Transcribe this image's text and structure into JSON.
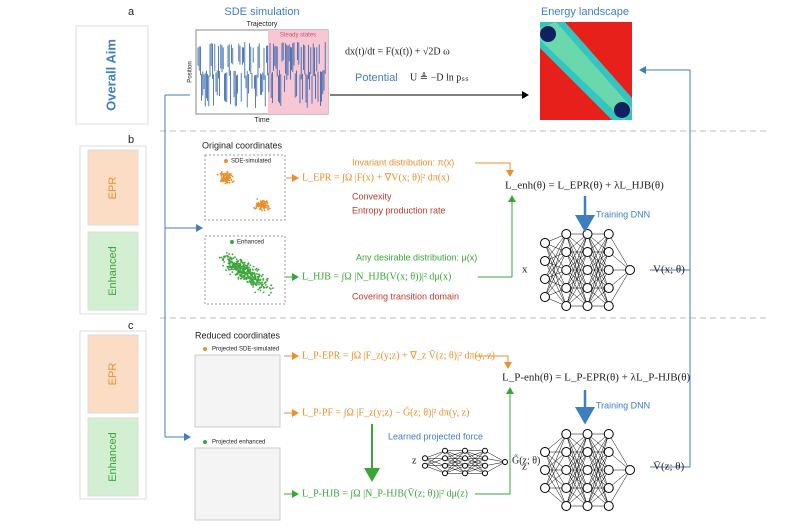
{
  "panel_a": {
    "label": "a",
    "side": "Overall Aim",
    "sde_title": "SDE simulation",
    "trajectory": "Trajectory",
    "steady": "Steady states",
    "position": "Position",
    "time": "Time",
    "equation": "dx(t)/dt = F(x(t)) + √2D ω",
    "potential_label": "Potential",
    "potential": "U ≜ −D ln pₛₛ",
    "landscape": "Energy landscape"
  },
  "panel_b": {
    "label": "b",
    "side_top": "EPR",
    "side_bottom": "Enhanced",
    "coords": "Original coordinates",
    "legend_top": "SDE-simulated",
    "legend_bottom": "Enhanced",
    "loss_epr": "L_EPR = ∫Ω |F(x) + ∇V(x; θ)|² dπ(x)",
    "invariant": "Invariant distribution: π(x)",
    "convexity": "Convexity",
    "epr_rate": "Entropy production rate",
    "any": "Any desirable distribution: μ(x)",
    "loss_hjb": "L_HJB = ∫Ω |N_HJB(V(x; θ))|² dμ(x)",
    "covering": "Covering transition domain",
    "total": "L_enh(θ) = L_EPR(θ) + λL_HJB(θ)",
    "training": "Training DNN",
    "input": "x",
    "output": "V(x; θ)"
  },
  "panel_c": {
    "label": "c",
    "side_top": "EPR",
    "side_bottom": "Enhanced",
    "coords": "Reduced coordinates",
    "legend_top": "Projected SDE-simulated",
    "legend_bottom": "Projected enhanced",
    "loss_epr": "L_P-EPR = ∫Ω |F_z(y;z) + ∇_z V̄(z; θ)|² dπ(y, z)",
    "loss_pf": "L_P-PF = ∫Ω |F_z(y;z) − G̃(z; θ)|² dπ(y, z)",
    "learned": "Learned projected force",
    "small_input": "z",
    "small_output": "G̃(z; θ)",
    "loss_hjb": "L_P-HJB = ∫Ω |N_P-HJB(V̄(z; θ))|² dμ(z)",
    "total": "L_P-enh(θ) = L_P-EPR(θ) + λL_P-HJB(θ)",
    "training": "Training DNN",
    "input": "z",
    "output": "V̄(z; θ)"
  }
}
